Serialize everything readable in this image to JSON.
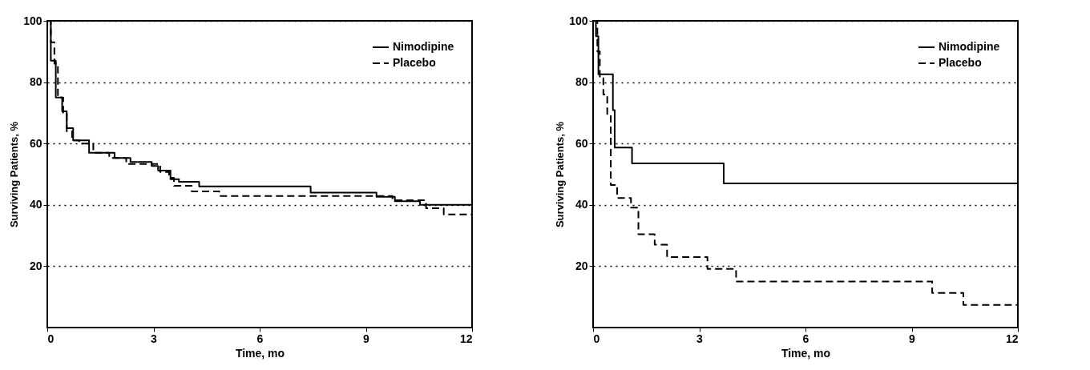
{
  "chart_data": [
    {
      "type": "step",
      "xlabel": "Time, mo",
      "ylabel": "Surviving Patients, %",
      "xlim": [
        0,
        12
      ],
      "xticks": [
        0,
        3,
        6,
        9,
        12
      ],
      "ylim": [
        0,
        100
      ],
      "yticks": [
        20,
        40,
        60,
        80,
        100
      ],
      "grid": "y",
      "legend": "top right",
      "series": [
        {
          "name": "Nimodipine",
          "color": "#000000",
          "line_style": "solid",
          "x": [
            0,
            0.1,
            0.24,
            0.42,
            0.55,
            0.73,
            1.18,
            1.9,
            2.35,
            2.95,
            3.13,
            3.48,
            3.72,
            4.29,
            7.44,
            9.3,
            9.82,
            10.53,
            12
          ],
          "values": [
            100,
            87,
            75,
            70.5,
            65,
            61,
            57,
            55.3,
            54,
            52.7,
            51.2,
            48.4,
            47.5,
            46,
            44,
            42.6,
            41.2,
            40,
            40
          ]
        },
        {
          "name": "Placebo",
          "color": "#000000",
          "line_style": "dashed",
          "x": [
            0,
            0.1,
            0.2,
            0.3,
            0.45,
            0.55,
            0.7,
            0.9,
            1.3,
            1.75,
            2.23,
            3.19,
            3.44,
            3.58,
            4.08,
            4.86,
            9.75,
            10.7,
            11.2,
            12
          ],
          "values": [
            100,
            93,
            86,
            75,
            70,
            64,
            61,
            60,
            57,
            55.3,
            53.3,
            50.7,
            48.8,
            46.2,
            44.4,
            42.9,
            41.5,
            38.9,
            36.9,
            35.7
          ]
        }
      ]
    },
    {
      "type": "step",
      "xlabel": "Time, mo",
      "ylabel": "Surviving Patients, %",
      "xlim": [
        0,
        12
      ],
      "xticks": [
        0,
        3,
        6,
        9,
        12
      ],
      "ylim": [
        0,
        100
      ],
      "yticks": [
        20,
        40,
        60,
        80,
        100
      ],
      "grid": "y",
      "legend": "top right",
      "series": [
        {
          "name": "Nimodipine",
          "color": "#000000",
          "line_style": "solid",
          "x": [
            0,
            0.08,
            0.15,
            0.56,
            0.61,
            1.1,
            3.69,
            12
          ],
          "values": [
            100,
            95,
            82.6,
            70.9,
            58.7,
            53.5,
            47,
            47
          ]
        },
        {
          "name": "Placebo",
          "color": "#000000",
          "line_style": "dashed",
          "x": [
            0,
            0.12,
            0.19,
            0.29,
            0.4,
            0.5,
            0.68,
            1.07,
            1.28,
            1.74,
            2.09,
            3.23,
            4.04,
            9.58,
            10.46,
            12
          ],
          "values": [
            100,
            90,
            81.3,
            76,
            69,
            46.5,
            42.2,
            39.1,
            30.4,
            27,
            23,
            19.1,
            15,
            11.3,
            7.4,
            7.4
          ]
        }
      ]
    }
  ]
}
